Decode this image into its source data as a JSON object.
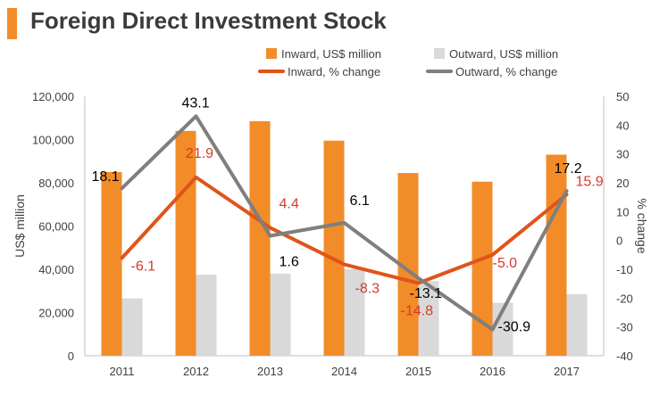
{
  "chart_data": {
    "type": "bar",
    "title": "Foreign Direct Investment Stock",
    "categories": [
      "2011",
      "2012",
      "2013",
      "2014",
      "2015",
      "2016",
      "2017"
    ],
    "series": [
      {
        "name": "Inward, US$ million",
        "kind": "bar",
        "axis": "left",
        "values": [
          85000,
          104000,
          108500,
          99500,
          84500,
          80500,
          93000
        ]
      },
      {
        "name": "Outward, US$ million",
        "kind": "bar",
        "axis": "left",
        "values": [
          26500,
          37500,
          38000,
          40000,
          34500,
          24500,
          28500
        ]
      },
      {
        "name": "Inward, % change",
        "kind": "line",
        "axis": "right",
        "values": [
          -6.1,
          21.9,
          4.4,
          -8.3,
          -14.8,
          -5.0,
          15.9
        ],
        "labels": [
          "-6.1",
          "21.9",
          "4.4",
          "-8.3",
          "-14.8",
          "-5.0",
          "15.9"
        ]
      },
      {
        "name": "Outward, % change",
        "kind": "line",
        "axis": "right",
        "values": [
          18.1,
          43.1,
          1.6,
          6.1,
          -13.1,
          -30.9,
          17.2
        ],
        "labels": [
          "18.1",
          "43.1",
          "1.6",
          "6.1",
          "-13.1",
          "-30.9",
          "17.2"
        ]
      }
    ],
    "ylabel": "US$ million",
    "y2label": "% change",
    "ylim": [
      0,
      120000
    ],
    "y2lim": [
      -40,
      50
    ],
    "yticks": [
      "0",
      "20,000",
      "40,000",
      "60,000",
      "80,000",
      "100,000",
      "120,000"
    ],
    "y2ticks": [
      "-40",
      "-30",
      "-20",
      "-10",
      "0",
      "10",
      "20",
      "30",
      "40",
      "50"
    ],
    "legend": "top",
    "colors": {
      "inward_bar": "#f28c28",
      "outward_bar": "#d9d9d9",
      "inward_line": "#e0541a",
      "outward_line": "#7f7f7f",
      "inward_label": "#d63a2a",
      "outward_label": "#000000"
    }
  }
}
